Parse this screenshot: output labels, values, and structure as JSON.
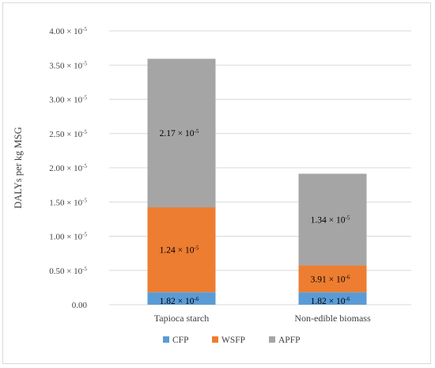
{
  "chart_data": {
    "type": "bar",
    "stacked": true,
    "categories": [
      "Tapioca starch",
      "Non-edible biomass"
    ],
    "series": [
      {
        "name": "CFP",
        "color": "#5b9bd5",
        "values": [
          1.82e-06,
          1.82e-06
        ],
        "labels": [
          "1.82 × 10",
          "1.82 × 10"
        ],
        "label_exp": [
          "-6",
          "-6"
        ]
      },
      {
        "name": "WSFP",
        "color": "#ed7d31",
        "values": [
          1.24e-05,
          3.91e-06
        ],
        "labels": [
          "1.24 × 10",
          "3.91 × 10"
        ],
        "label_exp": [
          "-5",
          "-6"
        ]
      },
      {
        "name": "APFP",
        "color": "#a5a5a5",
        "values": [
          2.17e-05,
          1.34e-05
        ],
        "labels": [
          "2.17 × 10",
          "1.34 × 10"
        ],
        "label_exp": [
          "-5",
          "-5"
        ]
      }
    ],
    "ylabel": "DALYs per kg MSG",
    "xlabel": "",
    "title": "",
    "ylim": [
      0,
      4e-05
    ],
    "yticks": [
      {
        "value": 4e-05,
        "mant": "4.00 × 10",
        "exp": "-5"
      },
      {
        "value": 3.5e-05,
        "mant": "3.50 × 10",
        "exp": "-5"
      },
      {
        "value": 3e-05,
        "mant": "3.00 × 10",
        "exp": "-5"
      },
      {
        "value": 2.5e-05,
        "mant": "2.50 × 10",
        "exp": "-5"
      },
      {
        "value": 2e-05,
        "mant": "2.00 × 10",
        "exp": "-5"
      },
      {
        "value": 1.5e-05,
        "mant": "1.50 × 10",
        "exp": "-5"
      },
      {
        "value": 1e-05,
        "mant": "1.00 × 10",
        "exp": "-5"
      },
      {
        "value": 5e-06,
        "mant": "0.50 × 10",
        "exp": "-5"
      },
      {
        "value": 0.0,
        "mant": "0.00",
        "exp": ""
      }
    ],
    "grid": true,
    "gridColor": "#d9d9d9",
    "legend": "bottom"
  }
}
